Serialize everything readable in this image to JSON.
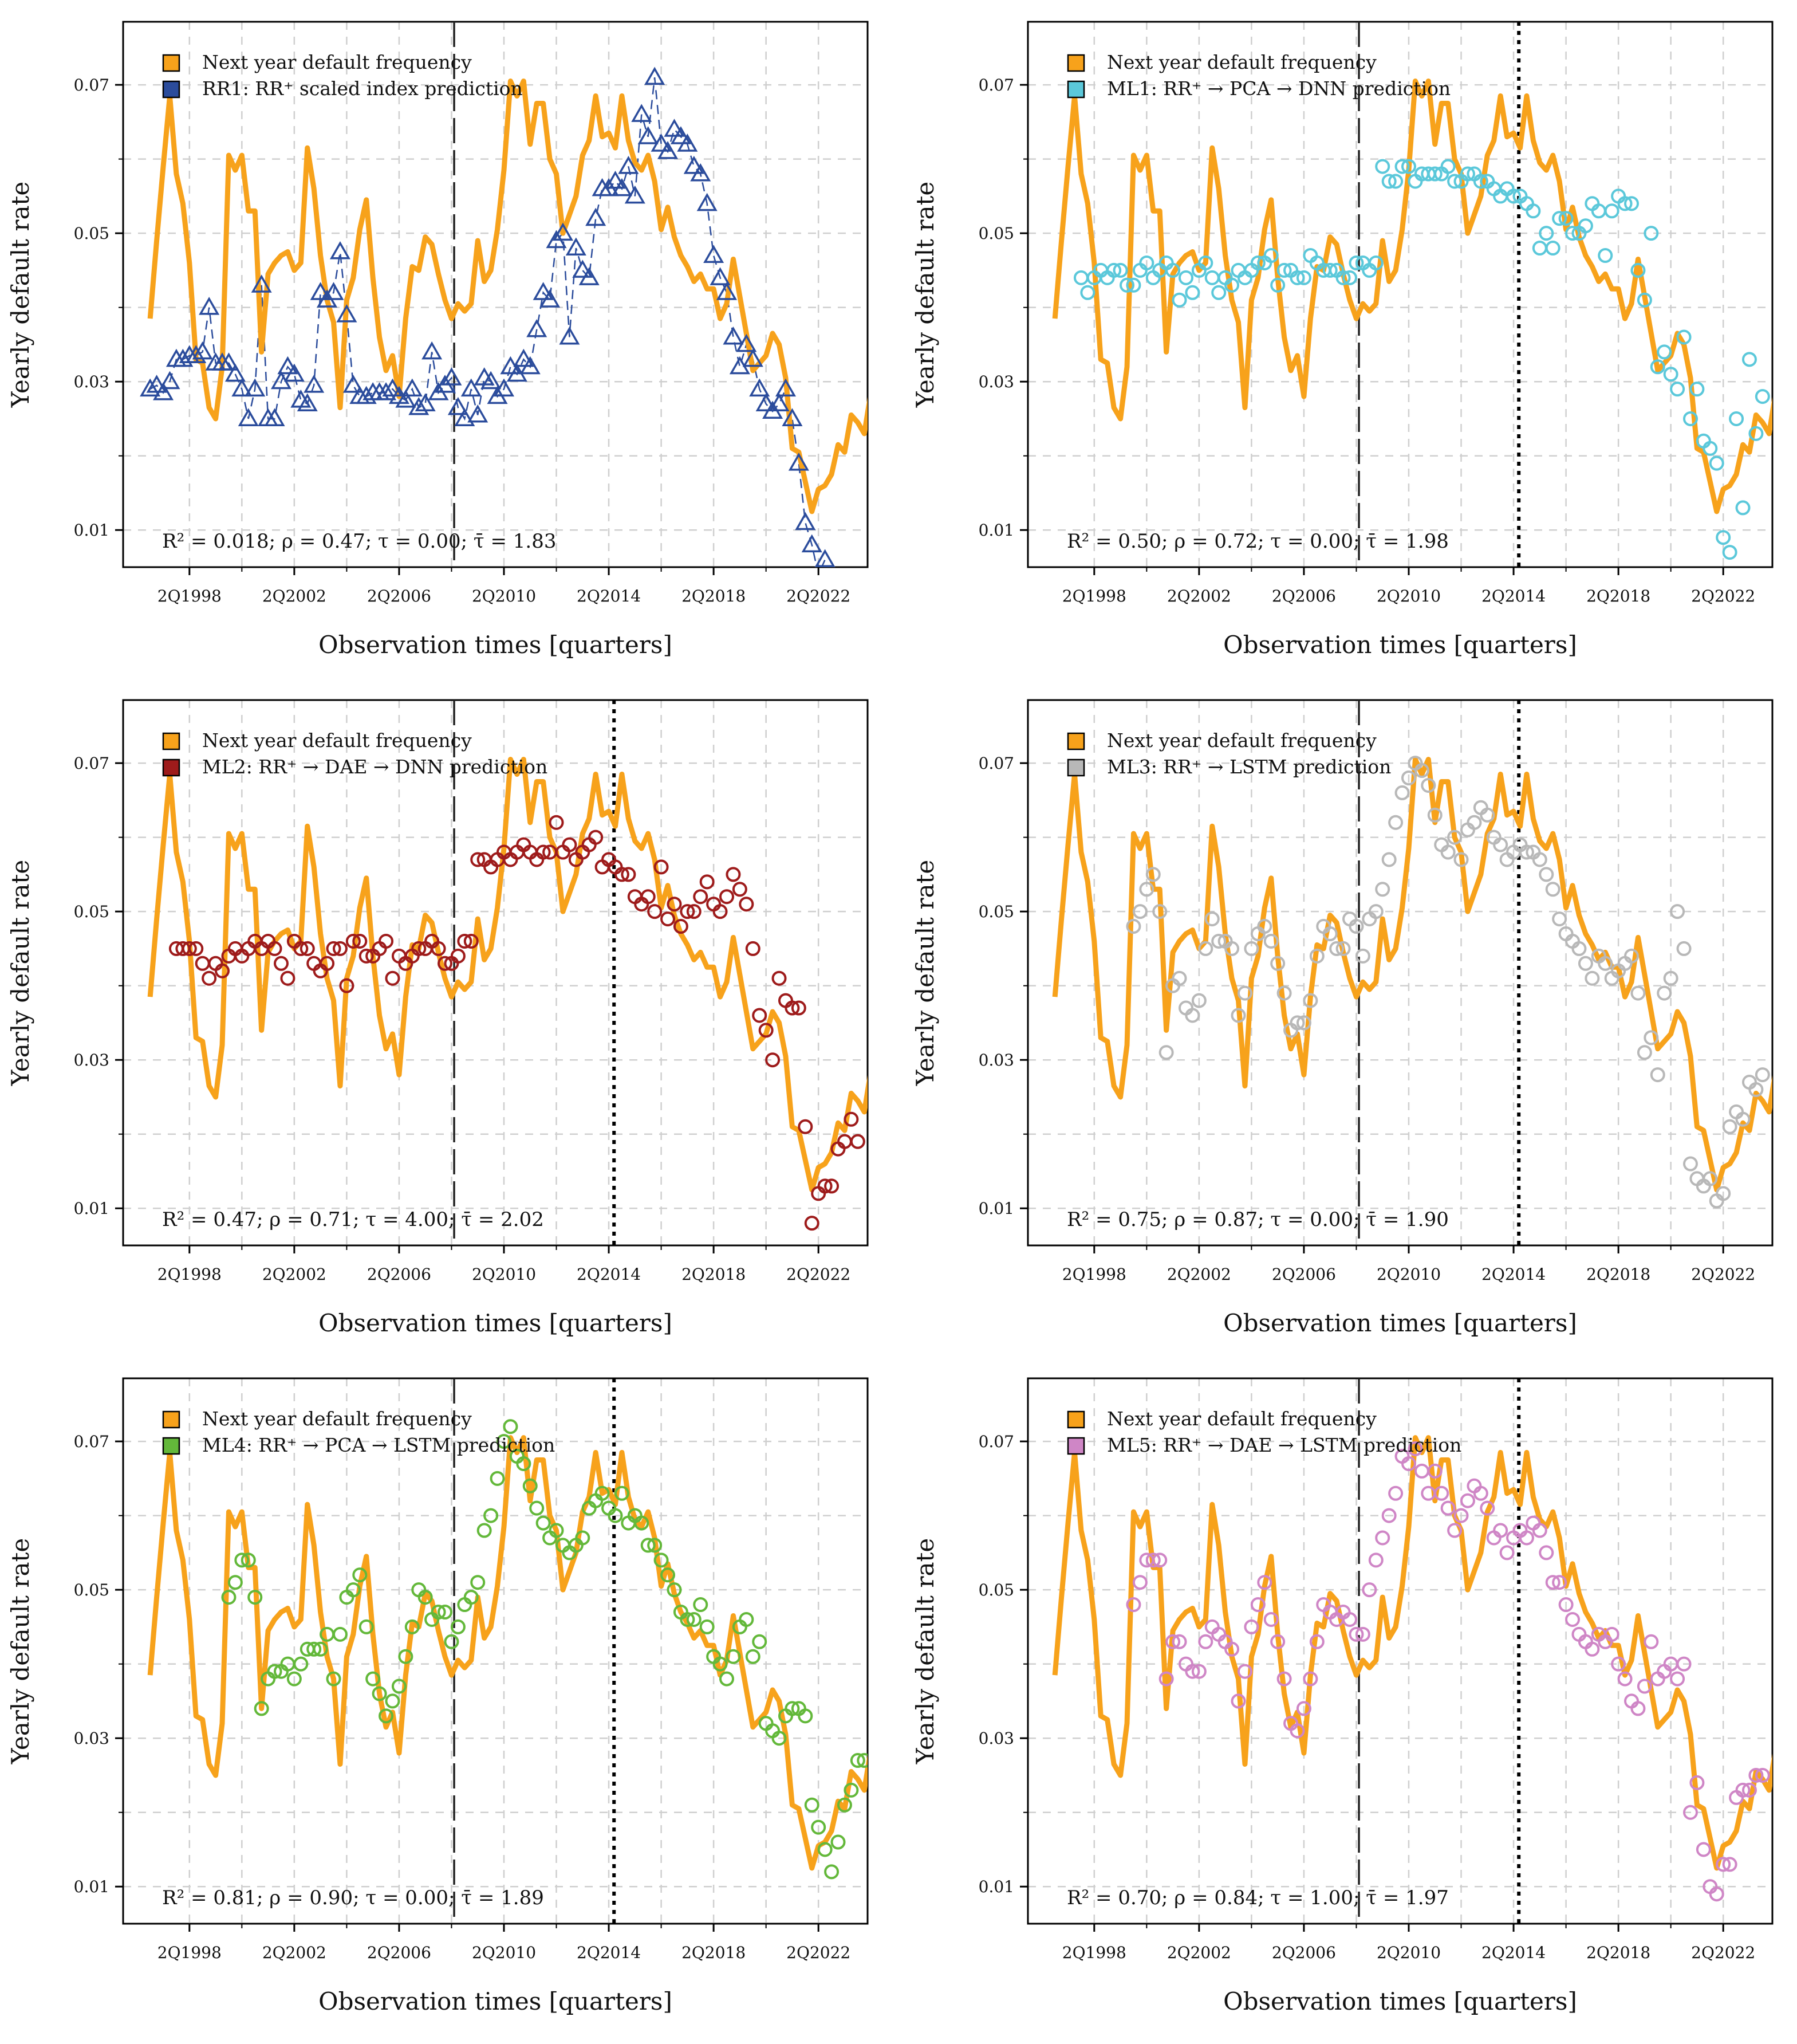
{
  "figure": {
    "layout": "3 rows x 2 columns of line/scatter charts",
    "colors": {
      "target": "#F7A21B",
      "RR1": "#2B4C9C",
      "ML1": "#5BC8DA",
      "ML2": "#9E1B1B",
      "ML3": "#B8B8B8",
      "ML4": "#63B83A",
      "ML5": "#CF86C6",
      "grid": "#cfcfcf",
      "axis": "#000000"
    }
  },
  "chart_data": [
    {
      "id": "RR1",
      "type": "line",
      "legend_target": "Next year default frequency",
      "legend_pred": "RR1: RR⁺ scaled index prediction",
      "marker": "triangle",
      "dotted_line": false,
      "stats": "R² = 0.018; ρ = 0.47; τ = 0.00; τ̄ = 1.83",
      "xlabel": "Observation times [quarters]",
      "ylabel": "Yearly default rate",
      "xticks": [
        "2Q1998",
        "2Q2002",
        "2Q2006",
        "2Q2010",
        "2Q2014",
        "2Q2018",
        "2Q2022"
      ],
      "yticks": [
        "0.01",
        "0.03",
        "0.05",
        "0.07"
      ],
      "ylim": [
        0.005,
        0.0785
      ],
      "dashed_line_x": "2Q2008"
    },
    {
      "id": "ML1",
      "type": "scatter",
      "legend_target": "Next year default frequency",
      "legend_pred": "ML1: RR⁺ → PCA → DNN prediction",
      "marker": "circle",
      "dotted_line": true,
      "stats": "R² = 0.50; ρ = 0.72; τ = 0.00; τ̄ = 1.98",
      "xlabel": "Observation times [quarters]",
      "ylabel": "Yearly default rate",
      "xticks": [
        "2Q1998",
        "2Q2002",
        "2Q2006",
        "2Q2010",
        "2Q2014",
        "2Q2018",
        "2Q2022"
      ],
      "yticks": [
        "0.01",
        "0.03",
        "0.05",
        "0.07"
      ],
      "ylim": [
        0.005,
        0.0785
      ],
      "dashed_line_x": "2Q2008",
      "dotted_line_x": "2Q2014"
    },
    {
      "id": "ML2",
      "type": "scatter",
      "legend_target": "Next year default frequency",
      "legend_pred": "ML2: RR⁺ → DAE → DNN prediction",
      "marker": "circle",
      "dotted_line": true,
      "stats": "R² = 0.47; ρ = 0.71; τ = 4.00; τ̄ = 2.02",
      "xlabel": "Observation times [quarters]",
      "ylabel": "Yearly default rate",
      "xticks": [
        "2Q1998",
        "2Q2002",
        "2Q2006",
        "2Q2010",
        "2Q2014",
        "2Q2018",
        "2Q2022"
      ],
      "yticks": [
        "0.01",
        "0.03",
        "0.05",
        "0.07"
      ],
      "ylim": [
        0.005,
        0.0785
      ],
      "dashed_line_x": "2Q2008",
      "dotted_line_x": "2Q2014"
    },
    {
      "id": "ML3",
      "type": "scatter",
      "legend_target": "Next year default frequency",
      "legend_pred": "ML3: RR⁺ → LSTM prediction",
      "marker": "circle",
      "dotted_line": true,
      "stats": "R² = 0.75; ρ = 0.87; τ = 0.00; τ̄ = 1.90",
      "xlabel": "Observation times [quarters]",
      "ylabel": "Yearly default rate",
      "xticks": [
        "2Q1998",
        "2Q2002",
        "2Q2006",
        "2Q2010",
        "2Q2014",
        "2Q2018",
        "2Q2022"
      ],
      "yticks": [
        "0.01",
        "0.03",
        "0.05",
        "0.07"
      ],
      "ylim": [
        0.005,
        0.0785
      ],
      "dashed_line_x": "2Q2008",
      "dotted_line_x": "2Q2014"
    },
    {
      "id": "ML4",
      "type": "scatter",
      "legend_target": "Next year default frequency",
      "legend_pred": "ML4: RR⁺ → PCA → LSTM prediction",
      "marker": "circle",
      "dotted_line": true,
      "stats": "R² = 0.81; ρ = 0.90; τ = 0.00; τ̄ = 1.89",
      "xlabel": "Observation times [quarters]",
      "ylabel": "Yearly default rate",
      "xticks": [
        "2Q1998",
        "2Q2002",
        "2Q2006",
        "2Q2010",
        "2Q2014",
        "2Q2018",
        "2Q2022"
      ],
      "yticks": [
        "0.01",
        "0.03",
        "0.05",
        "0.07"
      ],
      "ylim": [
        0.005,
        0.0785
      ],
      "dashed_line_x": "2Q2008",
      "dotted_line_x": "2Q2014"
    },
    {
      "id": "ML5",
      "type": "scatter",
      "legend_target": "Next year default frequency",
      "legend_pred": "ML5: RR⁺ → DAE → LSTM prediction",
      "marker": "circle",
      "dotted_line": true,
      "stats": "R² = 0.70; ρ = 0.84; τ = 1.00; τ̄ = 1.97",
      "xlabel": "Observation times [quarters]",
      "ylabel": "Yearly default rate",
      "xticks": [
        "2Q1998",
        "2Q2002",
        "2Q2006",
        "2Q2010",
        "2Q2014",
        "2Q2018",
        "2Q2022"
      ],
      "yticks": [
        "0.01",
        "0.03",
        "0.05",
        "0.07"
      ],
      "ylim": [
        0.005,
        0.0785
      ],
      "dashed_line_x": "2Q2008",
      "dotted_line_x": "2Q2014"
    }
  ],
  "series_target": {
    "name": "Next year default frequency",
    "start_quarter": "4Q1996",
    "values": [
      0.0385,
      0.049,
      0.059,
      0.0685,
      0.058,
      0.054,
      0.046,
      0.033,
      0.0325,
      0.0265,
      0.025,
      0.032,
      0.0605,
      0.0585,
      0.0605,
      0.053,
      0.053,
      0.034,
      0.0445,
      0.046,
      0.047,
      0.0475,
      0.045,
      0.046,
      0.0615,
      0.056,
      0.047,
      0.041,
      0.038,
      0.0265,
      0.041,
      0.044,
      0.0505,
      0.0545,
      0.044,
      0.036,
      0.0315,
      0.0335,
      0.028,
      0.0385,
      0.0455,
      0.045,
      0.0495,
      0.0485,
      0.0445,
      0.041,
      0.0385,
      0.0405,
      0.0395,
      0.0405,
      0.049,
      0.0435,
      0.045,
      0.0505,
      0.0585,
      0.0705,
      0.0685,
      0.0705,
      0.062,
      0.0675,
      0.0675,
      0.06,
      0.058,
      0.05,
      0.0525,
      0.055,
      0.0605,
      0.0625,
      0.0685,
      0.063,
      0.0635,
      0.0615,
      0.0685,
      0.0625,
      0.0595,
      0.0585,
      0.0605,
      0.057,
      0.0505,
      0.0535,
      0.0495,
      0.047,
      0.0455,
      0.0435,
      0.0445,
      0.0425,
      0.0425,
      0.0385,
      0.0405,
      0.0465,
      0.0415,
      0.0365,
      0.0315,
      0.0325,
      0.0335,
      0.0365,
      0.035,
      0.0305,
      0.021,
      0.0205,
      0.0165,
      0.0125,
      0.0155,
      0.016,
      0.0175,
      0.0215,
      0.0205,
      0.0255,
      0.0245,
      0.023,
      0.0285
    ]
  },
  "series_pred": {
    "RR1": [
      0.029,
      0.0295,
      0.0285,
      0.03,
      0.033,
      0.033,
      0.0335,
      0.0335,
      0.034,
      0.04,
      0.0325,
      0.0325,
      0.0325,
      0.031,
      0.029,
      0.025,
      0.029,
      0.043,
      0.025,
      0.025,
      0.03,
      0.032,
      0.031,
      0.0275,
      0.027,
      0.0295,
      0.042,
      0.041,
      0.042,
      0.0475,
      0.039,
      0.0295,
      0.028,
      0.028,
      0.0285,
      0.0285,
      0.0285,
      0.029,
      0.028,
      0.0275,
      0.029,
      0.0265,
      0.027,
      0.034,
      0.0285,
      0.0295,
      0.0305,
      0.0265,
      0.025,
      0.029,
      0.0255,
      0.0305,
      0.03,
      0.028,
      0.029,
      0.032,
      0.031,
      0.033,
      0.032,
      0.037,
      0.042,
      0.041,
      0.049,
      0.05,
      0.036,
      0.048,
      0.045,
      0.044,
      0.052,
      0.056,
      0.056,
      0.057,
      0.056,
      0.059,
      0.055,
      0.066,
      0.063,
      0.071,
      0.062,
      0.061,
      0.064,
      0.063,
      0.062,
      0.059,
      0.058,
      0.054,
      0.047,
      0.044,
      0.042,
      0.036,
      0.032,
      0.035,
      0.033,
      0.029,
      0.027,
      0.026,
      0.027,
      0.029,
      0.025,
      0.019,
      0.011,
      0.008,
      0.004,
      0.006
    ],
    "ML1": [
      null,
      null,
      null,
      null,
      0.044,
      0.042,
      0.044,
      0.045,
      0.044,
      0.045,
      0.045,
      0.043,
      0.043,
      0.045,
      0.046,
      0.044,
      0.045,
      0.046,
      0.045,
      0.041,
      0.044,
      0.042,
      0.045,
      0.046,
      0.044,
      0.042,
      0.044,
      0.043,
      0.045,
      0.044,
      0.045,
      0.046,
      0.046,
      0.047,
      0.043,
      0.045,
      0.045,
      0.044,
      0.044,
      0.047,
      0.046,
      0.045,
      0.045,
      0.045,
      0.044,
      0.044,
      0.046,
      0.046,
      0.045,
      0.046,
      0.059,
      0.057,
      0.057,
      0.059,
      0.059,
      0.057,
      0.058,
      0.058,
      0.058,
      0.058,
      0.059,
      0.057,
      0.057,
      0.058,
      0.058,
      0.057,
      0.057,
      0.056,
      0.055,
      0.056,
      0.055,
      0.055,
      0.054,
      0.053,
      0.048,
      0.05,
      0.048,
      0.052,
      0.052,
      0.05,
      0.05,
      0.051,
      0.054,
      0.053,
      0.047,
      0.053,
      0.055,
      0.054,
      0.054,
      0.045,
      0.041,
      0.05,
      0.032,
      0.034,
      0.031,
      0.029,
      0.036,
      0.025,
      0.029,
      0.022,
      0.021,
      0.019,
      0.009,
      0.007,
      0.025,
      0.013,
      0.033,
      0.023,
      0.028
    ],
    "ML2": [
      null,
      null,
      null,
      null,
      0.045,
      0.045,
      0.045,
      0.045,
      0.043,
      0.041,
      0.043,
      0.042,
      0.044,
      0.045,
      0.044,
      0.045,
      0.046,
      0.045,
      0.046,
      0.045,
      0.043,
      0.041,
      0.046,
      0.045,
      0.045,
      0.043,
      0.042,
      0.043,
      0.045,
      0.045,
      0.04,
      0.046,
      0.046,
      0.044,
      0.044,
      0.045,
      0.046,
      0.041,
      0.044,
      0.043,
      0.044,
      0.045,
      0.045,
      0.046,
      0.045,
      0.043,
      0.043,
      0.044,
      0.046,
      0.046,
      0.057,
      0.057,
      0.056,
      0.057,
      0.058,
      0.057,
      0.058,
      0.059,
      0.058,
      0.057,
      0.058,
      0.058,
      0.062,
      0.058,
      0.059,
      0.057,
      0.058,
      0.059,
      0.06,
      0.056,
      0.057,
      0.056,
      0.055,
      0.055,
      0.052,
      0.051,
      0.052,
      0.05,
      0.056,
      0.049,
      0.051,
      0.048,
      0.05,
      0.05,
      0.052,
      0.054,
      0.051,
      0.05,
      0.052,
      0.055,
      0.053,
      0.051,
      0.045,
      0.036,
      0.034,
      0.03,
      0.041,
      0.038,
      0.037,
      0.037,
      0.021,
      0.008,
      0.012,
      0.013,
      0.013,
      0.018,
      0.019,
      0.022,
      0.019
    ],
    "ML3": [
      null,
      null,
      null,
      null,
      null,
      null,
      null,
      null,
      null,
      null,
      null,
      null,
      0.048,
      0.05,
      0.053,
      0.055,
      0.05,
      0.031,
      0.04,
      0.041,
      0.037,
      0.036,
      0.038,
      0.045,
      0.049,
      0.046,
      0.046,
      0.045,
      0.036,
      0.039,
      0.045,
      0.047,
      0.048,
      0.046,
      0.043,
      0.039,
      0.034,
      0.035,
      0.035,
      0.038,
      0.044,
      0.048,
      0.047,
      0.045,
      0.045,
      0.049,
      0.048,
      0.044,
      0.049,
      0.05,
      0.053,
      0.057,
      0.062,
      0.066,
      0.068,
      0.07,
      0.069,
      0.067,
      0.063,
      0.059,
      0.058,
      0.06,
      0.057,
      0.061,
      0.062,
      0.064,
      0.063,
      0.06,
      0.059,
      0.057,
      0.058,
      0.059,
      0.058,
      0.058,
      0.057,
      0.055,
      0.053,
      0.049,
      0.047,
      0.046,
      0.045,
      0.043,
      0.041,
      0.044,
      0.043,
      0.041,
      0.042,
      0.043,
      0.044,
      0.039,
      0.031,
      0.033,
      0.028,
      0.039,
      0.041,
      0.05,
      0.045,
      0.016,
      0.014,
      0.013,
      0.014,
      0.011,
      0.012,
      0.021,
      0.023,
      0.022,
      0.027,
      0.026,
      0.028
    ],
    "ML4": [
      null,
      null,
      null,
      null,
      null,
      null,
      null,
      null,
      null,
      null,
      null,
      null,
      0.049,
      0.051,
      0.054,
      0.054,
      0.049,
      0.034,
      0.038,
      0.039,
      0.039,
      0.04,
      0.038,
      0.04,
      0.042,
      0.042,
      0.042,
      0.044,
      0.038,
      0.044,
      0.049,
      0.05,
      0.052,
      0.045,
      0.038,
      0.036,
      0.033,
      0.035,
      0.037,
      0.041,
      0.045,
      0.05,
      0.049,
      0.046,
      0.047,
      0.047,
      0.043,
      0.045,
      0.048,
      0.049,
      0.051,
      0.058,
      0.06,
      0.065,
      0.07,
      0.072,
      0.068,
      0.067,
      0.064,
      0.061,
      0.059,
      0.057,
      0.058,
      0.056,
      0.055,
      0.056,
      0.057,
      0.061,
      0.062,
      0.063,
      0.061,
      0.06,
      0.063,
      0.059,
      0.06,
      0.059,
      0.056,
      0.056,
      0.054,
      0.052,
      0.05,
      0.047,
      0.046,
      0.046,
      0.048,
      0.045,
      0.041,
      0.04,
      0.038,
      0.041,
      0.045,
      0.046,
      0.041,
      0.043,
      0.032,
      0.031,
      0.03,
      0.033,
      0.034,
      0.034,
      0.033,
      0.021,
      0.018,
      0.015,
      0.012,
      0.016,
      0.021,
      0.023,
      0.027,
      0.027
    ],
    "ML5": [
      null,
      null,
      null,
      null,
      null,
      null,
      null,
      null,
      null,
      null,
      null,
      null,
      0.048,
      0.051,
      0.054,
      0.054,
      0.054,
      0.038,
      0.043,
      0.043,
      0.04,
      0.039,
      0.039,
      0.043,
      0.045,
      0.044,
      0.043,
      0.042,
      0.035,
      0.039,
      0.045,
      0.048,
      0.051,
      0.046,
      0.043,
      0.038,
      0.032,
      0.031,
      0.034,
      0.038,
      0.043,
      0.048,
      0.047,
      0.046,
      0.047,
      0.046,
      0.044,
      0.044,
      0.05,
      0.054,
      0.057,
      0.06,
      0.063,
      0.068,
      0.067,
      0.069,
      0.066,
      0.063,
      0.066,
      0.063,
      0.061,
      0.058,
      0.06,
      0.062,
      0.064,
      0.063,
      0.061,
      0.057,
      0.058,
      0.055,
      0.057,
      0.058,
      0.057,
      0.059,
      0.058,
      0.055,
      0.051,
      0.051,
      0.048,
      0.046,
      0.044,
      0.043,
      0.042,
      0.044,
      0.043,
      0.044,
      0.04,
      0.038,
      0.035,
      0.034,
      0.037,
      0.043,
      0.038,
      0.039,
      0.04,
      0.038,
      0.04,
      0.02,
      0.024,
      0.015,
      0.01,
      0.009,
      0.013,
      0.013,
      0.022,
      0.023,
      0.023,
      0.025,
      0.025
    ]
  }
}
